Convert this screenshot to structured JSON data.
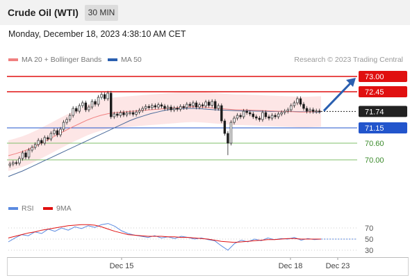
{
  "header": {
    "title": "Crude Oil (WTI)",
    "timeframe": "30 MIN"
  },
  "timestamp": "Monday, December 18, 2023 4:38:10 AM CET",
  "legend": {
    "ma20_label": "MA 20 + Bollinger Bands",
    "ma50_label": "MA 50",
    "rsi_label": "RSI",
    "ma9_label": "9MA"
  },
  "credit": "Research © 2023 Trading Central",
  "colors": {
    "resistance": "#e01010",
    "support_major": "#2255cc",
    "support_minor": "#7fbf6a",
    "current": "#222222",
    "ma20": "#f08080",
    "ma50": "#4a6a9a",
    "bollinger_fill": "#fde0e0",
    "bull": "#ffffff",
    "bear": "#1a1a1a",
    "rsi": "#5b8ae0",
    "ma9": "#e01010",
    "arrow": "#2a5fb0"
  },
  "chart_data": [
    {
      "type": "candlestick",
      "title": "Crude Oil (WTI)",
      "timeframe": "30 MIN",
      "x_ticks": [
        "Dec 15",
        "Dec 18",
        "Dec 23"
      ],
      "ylim": [
        69.2,
        73.25
      ],
      "levels": [
        {
          "value": 73.0,
          "label": "73.00",
          "kind": "resistance"
        },
        {
          "value": 72.45,
          "label": "72.45",
          "kind": "resistance"
        },
        {
          "value": 71.74,
          "label": "71.74",
          "kind": "current"
        },
        {
          "value": 71.15,
          "label": "71.15",
          "kind": "support_major"
        },
        {
          "value": 70.6,
          "label": "70.60",
          "kind": "support_minor"
        },
        {
          "value": 70.0,
          "label": "70.00",
          "kind": "support_minor"
        }
      ],
      "forecast_arrow": {
        "from": 71.74,
        "to": 73.0,
        "direction": "up"
      },
      "close": [
        69.85,
        69.9,
        69.88,
        70.05,
        70.25,
        70.1,
        70.35,
        70.45,
        70.55,
        70.7,
        70.6,
        70.8,
        70.75,
        70.95,
        71.05,
        70.9,
        71.1,
        71.35,
        71.45,
        71.6,
        71.85,
        71.75,
        71.95,
        72.05,
        71.8,
        71.9,
        72.1,
        72.0,
        72.25,
        72.35,
        72.2,
        72.4,
        71.55,
        71.65,
        71.6,
        71.7,
        71.62,
        71.68,
        71.7,
        71.64,
        71.72,
        71.78,
        71.85,
        71.92,
        71.88,
        71.95,
        71.9,
        71.98,
        71.93,
        71.85,
        71.9,
        71.8,
        71.86,
        71.82,
        71.92,
        71.88,
        72.0,
        71.95,
        72.05,
        71.9,
        71.98,
        71.94,
        72.08,
        71.96,
        72.1,
        71.85,
        71.95,
        71.4,
        70.95,
        70.6,
        71.35,
        71.5,
        71.6,
        71.55,
        71.75,
        71.7,
        71.65,
        71.55,
        71.5,
        71.45,
        71.7,
        71.55,
        71.5,
        71.6,
        71.55,
        71.65,
        71.7,
        71.75,
        71.8,
        71.95,
        72.05,
        72.2,
        72.0,
        71.85,
        71.75,
        71.8,
        71.74,
        71.76,
        71.74
      ],
      "ma20": [
        70.15,
        70.22,
        70.3,
        70.4,
        70.52,
        70.65,
        70.78,
        70.92,
        71.05,
        71.18,
        71.3,
        71.42,
        71.52,
        71.6,
        71.66,
        71.7,
        71.72,
        71.74,
        71.76,
        71.78,
        71.8,
        71.82,
        71.84,
        71.86,
        71.88,
        71.9,
        71.91,
        71.9,
        71.88,
        71.86,
        71.84,
        71.82,
        71.8,
        71.8,
        71.79,
        71.78,
        71.77,
        71.76,
        71.75,
        71.74,
        71.73,
        71.72,
        71.72,
        71.73,
        71.74
      ],
      "ma50": [
        69.4,
        69.5,
        69.6,
        69.72,
        69.84,
        69.96,
        70.08,
        70.2,
        70.32,
        70.44,
        70.56,
        70.68,
        70.8,
        70.92,
        71.04,
        71.16,
        71.28,
        71.4,
        71.5,
        71.58,
        71.66,
        71.72,
        71.78,
        71.82,
        71.84,
        71.85,
        71.85,
        71.84,
        71.82,
        71.8,
        71.79,
        71.78,
        71.77,
        71.76,
        71.76,
        71.75,
        71.75,
        71.74,
        71.74,
        71.74,
        71.74,
        71.73,
        71.73,
        71.72,
        71.72
      ]
    },
    {
      "type": "line",
      "title": "RSI",
      "series": [
        {
          "name": "RSI",
          "values": [
            45,
            52,
            58,
            56,
            63,
            60,
            68,
            64,
            70,
            66,
            72,
            69,
            74,
            71,
            76,
            78,
            73,
            65,
            60,
            57,
            55,
            53,
            56,
            52,
            54,
            51,
            55,
            53,
            50,
            52,
            49,
            47,
            38,
            30,
            42,
            48,
            45,
            50,
            47,
            52,
            49,
            51,
            50,
            53,
            48,
            51,
            49,
            50
          ]
        },
        {
          "name": "9MA",
          "values": [
            52,
            55,
            58,
            61,
            63,
            66,
            68,
            70,
            72,
            74,
            75,
            76,
            76,
            75,
            72,
            68,
            64,
            61,
            58,
            57,
            56,
            55,
            55,
            55,
            54,
            54,
            53,
            53,
            52,
            51,
            50,
            48,
            46,
            45,
            44,
            45,
            46,
            47,
            48,
            49,
            49,
            50,
            51,
            51,
            50,
            50,
            50,
            50
          ]
        }
      ],
      "yticks": [
        30,
        50,
        70
      ],
      "ylim": [
        20,
        85
      ]
    }
  ]
}
